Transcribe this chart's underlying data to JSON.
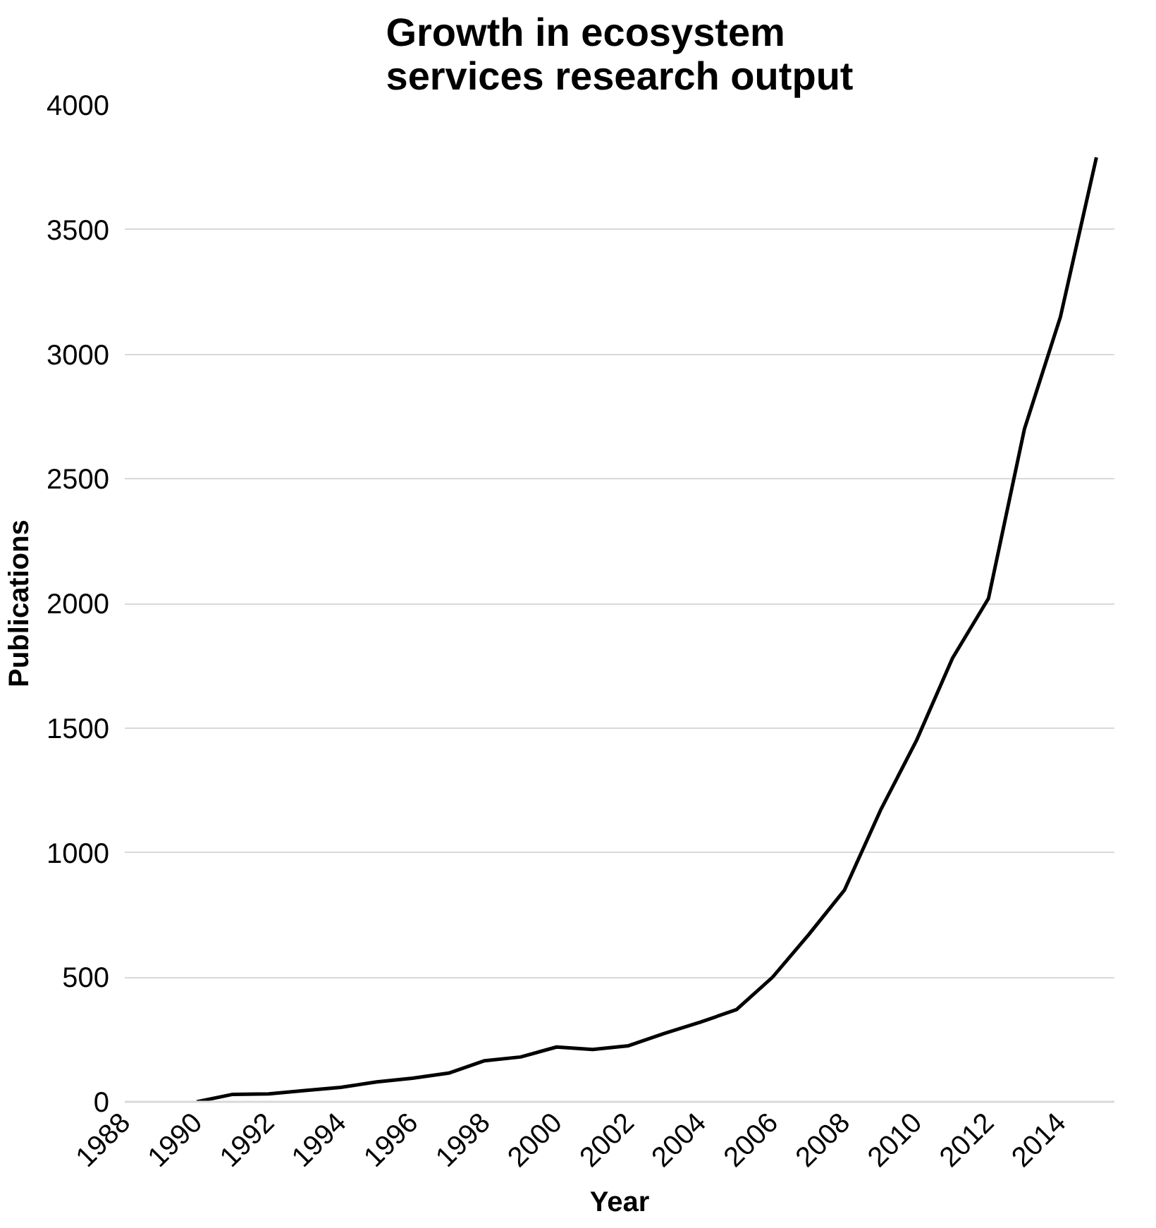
{
  "chart_data": {
    "type": "line",
    "title": "Growth in ecosystem services research output",
    "xlabel": "Year",
    "ylabel": "Publications",
    "x": [
      1990,
      1991,
      1992,
      1993,
      1994,
      1995,
      1996,
      1997,
      1998,
      1999,
      2000,
      2001,
      2002,
      2003,
      2004,
      2005,
      2006,
      2007,
      2008,
      2009,
      2010,
      2011,
      2012,
      2013,
      2014,
      2015
    ],
    "series": [
      {
        "color": "#000000",
        "values": [
          0,
          30,
          32,
          45,
          58,
          80,
          95,
          115,
          165,
          180,
          220,
          210,
          225,
          275,
          320,
          370,
          500,
          670,
          850,
          1170,
          1450,
          1780,
          2020,
          2700,
          3150,
          3790
        ]
      }
    ],
    "xlim": [
      1988,
      2015.5
    ],
    "xticks": [
      1988,
      1990,
      1992,
      1994,
      1996,
      1998,
      2000,
      2002,
      2004,
      2006,
      2008,
      2010,
      2012,
      2014
    ],
    "ylim": [
      0,
      4000
    ],
    "yticks": [
      0,
      500,
      1000,
      1500,
      2000,
      2500,
      3000,
      3500,
      4000
    ],
    "grid": "y",
    "marker": "none",
    "line_style": "solid"
  }
}
